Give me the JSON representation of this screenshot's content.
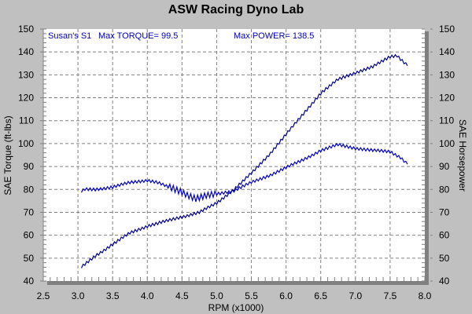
{
  "chart_data": {
    "type": "line",
    "title": "ASW Racing Dyno Lab",
    "xlabel": "RPM (x1000)",
    "ylabel": "SAE Torque (ft-lbs)",
    "y2label": "SAE Horsepower",
    "xlim": [
      2.5,
      8.0
    ],
    "ylim": [
      40,
      150
    ],
    "y2lim": [
      40,
      150
    ],
    "xticks": [
      "2.5",
      "3.0",
      "3.5",
      "4.0",
      "4.5",
      "5.0",
      "5.5",
      "6.0",
      "6.5",
      "7.0",
      "7.5",
      "8.0"
    ],
    "yticks": [
      "40",
      "50",
      "60",
      "70",
      "80",
      "90",
      "100",
      "110",
      "120",
      "130",
      "140",
      "150"
    ],
    "grid": true,
    "annotations": {
      "run_label": "Susan's S1",
      "max_torque": "Max TORQUE= 99.5",
      "max_power": "Max POWER= 138.5"
    },
    "series": [
      {
        "name": "SAE Torque",
        "color": "#0000c0",
        "x": [
          3.05,
          3.1,
          3.25,
          3.5,
          3.75,
          4.0,
          4.15,
          4.3,
          4.5,
          4.7,
          4.85,
          5.0,
          5.25,
          5.5,
          5.75,
          6.0,
          6.25,
          6.5,
          6.75,
          7.0,
          7.25,
          7.5,
          7.65,
          7.75
        ],
        "y": [
          79,
          80,
          80,
          81,
          83,
          84,
          83,
          81,
          79,
          76,
          77,
          78,
          79.5,
          83,
          86,
          89.5,
          93,
          97,
          99.5,
          98,
          97,
          96.5,
          94,
          91
        ]
      },
      {
        "name": "SAE Horsepower",
        "color": "#00008b",
        "x": [
          3.05,
          3.25,
          3.5,
          3.75,
          4.0,
          4.25,
          4.5,
          4.75,
          5.0,
          5.25,
          5.5,
          5.75,
          6.0,
          6.25,
          6.5,
          6.75,
          7.0,
          7.25,
          7.5,
          7.6,
          7.75
        ],
        "y": [
          46,
          51,
          56,
          61,
          64,
          66,
          68,
          70,
          74,
          80,
          87,
          95,
          104,
          113,
          122,
          128,
          131,
          133.5,
          138,
          138.5,
          134
        ]
      }
    ]
  }
}
